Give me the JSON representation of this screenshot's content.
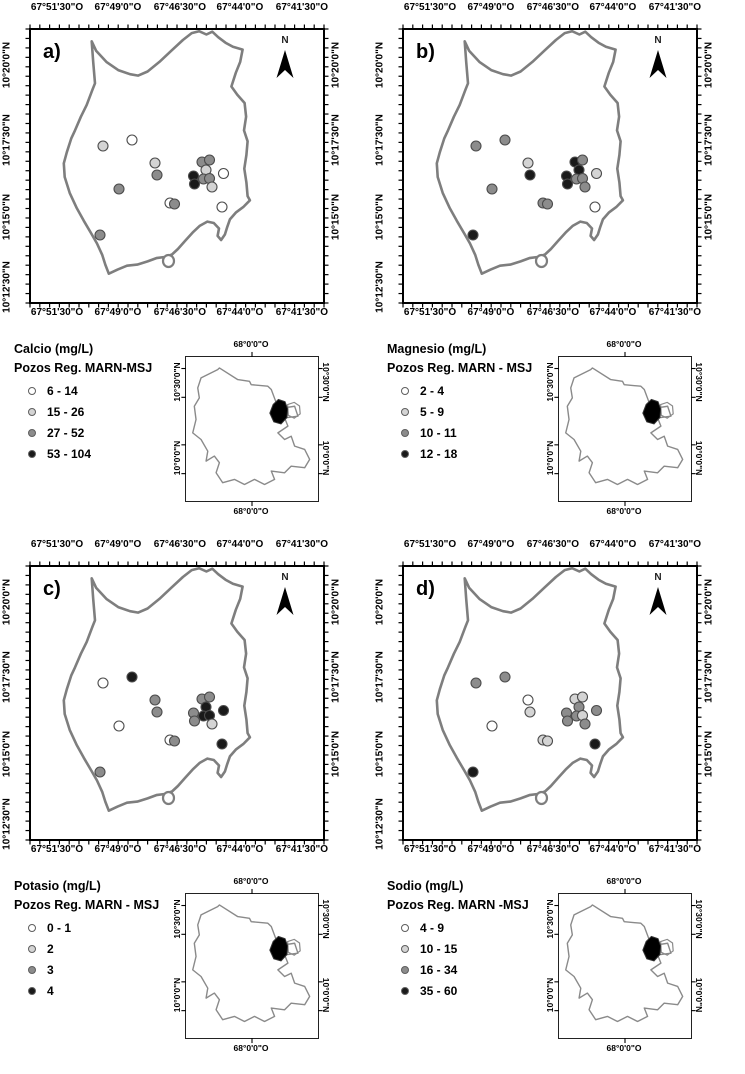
{
  "figure_type": "well-water chemistry maps, Municipality San José (Pozos Reg. MARN-MSJ)",
  "north": "N",
  "axis": {
    "top": [
      "67°51'30\"O",
      "67°49'0\"O",
      "67°46'30\"O",
      "67°44'0\"O",
      "67°41'30\"O"
    ],
    "bottom": [
      "67°51'30\"O",
      "67°49'0\"O",
      "67°46'30\"O",
      "67°44'0\"O",
      "67°41'30\"O"
    ],
    "left": [
      "10°20'0\"N",
      "10°17'30\"N",
      "10°15'0\"N",
      "10°12'30\"N"
    ],
    "right": [
      "10°20'0\"N",
      "10°17'30\"N",
      "10°15'0\"N"
    ]
  },
  "inset": {
    "top": "68°0'0\"O",
    "bottom": "68°0'0\"O",
    "left": [
      "10°30'0\"N",
      "10°0'0\"N"
    ],
    "right": [
      "10°30'0\"N",
      "10°0'0\"N"
    ]
  },
  "class_colors": [
    "#ffffff",
    "#d4d4d4",
    "#8c8c8c",
    "#1a1a1a"
  ],
  "wells": [
    [
      73,
      117
    ],
    [
      102,
      111
    ],
    [
      125,
      134
    ],
    [
      127,
      146
    ],
    [
      89,
      160
    ],
    [
      163.5,
      147
    ],
    [
      164.5,
      155
    ],
    [
      172,
      133
    ],
    [
      179.5,
      131
    ],
    [
      176,
      141
    ],
    [
      173.5,
      150
    ],
    [
      179.5,
      149.5
    ],
    [
      182,
      158
    ],
    [
      193.5,
      144.5
    ],
    [
      192,
      178
    ],
    [
      140,
      174
    ],
    [
      144.5,
      175
    ],
    [
      70,
      206
    ]
  ],
  "panels": [
    {
      "id": "a",
      "letter": "a)",
      "title": "Calcio (mg/L)",
      "subtitle": "Pozos Reg. MARN-MSJ",
      "classes": [
        "6 - 14",
        "15 - 26",
        "27 - 52",
        "53 - 104"
      ],
      "well_classes": [
        2,
        1,
        2,
        3,
        3,
        4,
        4,
        3,
        3,
        2,
        3,
        3,
        2,
        1,
        1,
        1,
        3,
        3
      ]
    },
    {
      "id": "b",
      "letter": "b)",
      "title": "Magnesio (mg/L)",
      "subtitle": "Pozos Reg. MARN - MSJ",
      "classes": [
        "2 - 4",
        "5 - 9",
        "10 - 11",
        "12 - 18"
      ],
      "well_classes": [
        3,
        3,
        2,
        4,
        3,
        4,
        4,
        4,
        3,
        4,
        3,
        3,
        3,
        2,
        1,
        3,
        3,
        4
      ]
    },
    {
      "id": "c",
      "letter": "c)",
      "title": "Potasio (mg/L)",
      "subtitle": "Pozos Reg. MARN - MSJ",
      "classes": [
        "0 - 1",
        "2",
        "3",
        "4"
      ],
      "well_classes": [
        1,
        4,
        3,
        3,
        1,
        3,
        3,
        3,
        3,
        4,
        4,
        4,
        2,
        4,
        4,
        1,
        3,
        3
      ]
    },
    {
      "id": "d",
      "letter": "d)",
      "title": "Sodio (mg/L)",
      "subtitle": "Pozos Reg. MARN -MSJ",
      "classes": [
        "4 - 9",
        "10 - 15",
        "16 - 34",
        "35 - 60"
      ],
      "well_classes": [
        3,
        3,
        1,
        2,
        1,
        3,
        3,
        2,
        2,
        3,
        3,
        2,
        3,
        3,
        4,
        2,
        2,
        4
      ]
    }
  ]
}
